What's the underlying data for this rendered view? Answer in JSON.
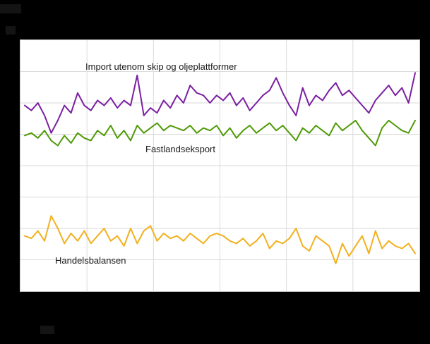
{
  "colors": {
    "background": "#000000",
    "plot_background": "#ffffff",
    "grid": "#dadada",
    "frame": "#c9c9c9",
    "import_line": "#7b1fa2",
    "export_line": "#4e9a06",
    "balance_line": "#f2b01e"
  },
  "labels": {
    "import": "Import utenom skip og oljeplattformer",
    "export": "Fastlandseksport",
    "balance": "Handelsbalansen"
  },
  "chart_data": {
    "type": "line",
    "grid": true,
    "legend_position": "inline-annotations",
    "axis_tick_labels_visible": false,
    "ylim": [
      0,
      100
    ],
    "series": [
      {
        "name": "Import utenom skip og oljeplattformer",
        "color": "#7b1fa2",
        "values": [
          74,
          72,
          75,
          70,
          63,
          68,
          74,
          71,
          79,
          74,
          72,
          76,
          74,
          77,
          73,
          76,
          74,
          86,
          70,
          73,
          71,
          76,
          73,
          78,
          75,
          82,
          79,
          78,
          75,
          78,
          76,
          79,
          74,
          77,
          72,
          75,
          78,
          80,
          85,
          79,
          74,
          70,
          81,
          74,
          78,
          76,
          80,
          83,
          78,
          80,
          77,
          74,
          71,
          76,
          79,
          82,
          78,
          81,
          75,
          87
        ]
      },
      {
        "name": "Fastlandseksport",
        "color": "#4e9a06",
        "values": [
          62,
          63,
          61,
          64,
          60,
          58,
          62,
          59,
          63,
          61,
          60,
          64,
          62,
          66,
          61,
          64,
          60,
          66,
          63,
          65,
          67,
          64,
          66,
          65,
          64,
          66,
          63,
          65,
          64,
          66,
          62,
          65,
          61,
          64,
          66,
          63,
          65,
          67,
          64,
          66,
          63,
          60,
          65,
          63,
          66,
          64,
          62,
          67,
          64,
          66,
          68,
          64,
          61,
          58,
          65,
          68,
          66,
          64,
          63,
          68
        ]
      },
      {
        "name": "Handelsbalansen",
        "color": "#f2b01e",
        "values": [
          22,
          21,
          24,
          20,
          30,
          25,
          19,
          23,
          20,
          24,
          19,
          22,
          25,
          20,
          22,
          18,
          25,
          19,
          24,
          26,
          20,
          23,
          21,
          22,
          20,
          23,
          21,
          19,
          22,
          23,
          22,
          20,
          19,
          21,
          18,
          20,
          23,
          17,
          20,
          19,
          21,
          25,
          18,
          16,
          22,
          20,
          18,
          11,
          19,
          14,
          18,
          22,
          15,
          24,
          17,
          20,
          18,
          17,
          19,
          15
        ]
      }
    ]
  }
}
